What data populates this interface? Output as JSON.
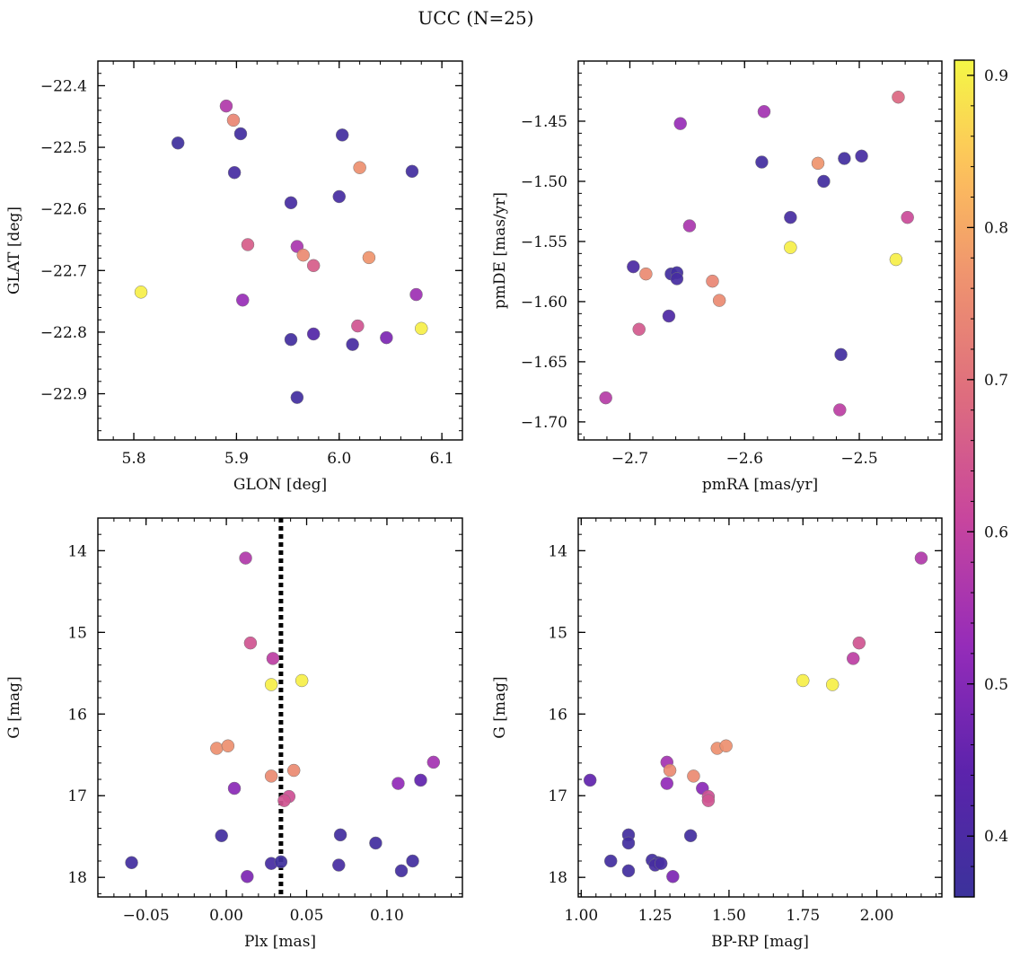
{
  "figure": {
    "title": "UCC (N=25)"
  },
  "colorbar": {
    "colormap": "plasma",
    "range": [
      0.36,
      0.91
    ],
    "ticks": [
      0.4,
      0.5,
      0.6,
      0.7,
      0.8,
      0.9
    ],
    "tick_labels": [
      "0.4",
      "0.5",
      "0.6",
      "0.7",
      "0.8",
      "0.9"
    ]
  },
  "chart_data": [
    {
      "type": "scatter",
      "panel": "top-left",
      "xlabel": "GLON [deg]",
      "ylabel": "GLAT [deg]",
      "xlim": [
        5.765,
        6.12
      ],
      "ylim": [
        -22.975,
        -22.36
      ],
      "xticks": [
        5.8,
        5.9,
        6.0,
        6.1
      ],
      "xtick_labels": [
        "5.8",
        "5.9",
        "6.0",
        "6.1"
      ],
      "yticks": [
        -22.4,
        -22.5,
        -22.6,
        -22.7,
        -22.8,
        -22.9
      ],
      "ytick_labels": [
        "−22.4",
        "−22.5",
        "−22.6",
        "−22.7",
        "−22.8",
        "−22.9"
      ],
      "points": [
        {
          "x": 5.843,
          "y": -22.493,
          "c": 0.37
        },
        {
          "x": 5.89,
          "y": -22.433,
          "c": 0.57
        },
        {
          "x": 5.897,
          "y": -22.456,
          "c": 0.74
        },
        {
          "x": 5.904,
          "y": -22.478,
          "c": 0.38
        },
        {
          "x": 5.898,
          "y": -22.541,
          "c": 0.39
        },
        {
          "x": 6.003,
          "y": -22.48,
          "c": 0.38
        },
        {
          "x": 6.02,
          "y": -22.533,
          "c": 0.76
        },
        {
          "x": 6.071,
          "y": -22.539,
          "c": 0.38
        },
        {
          "x": 5.953,
          "y": -22.59,
          "c": 0.39
        },
        {
          "x": 6.0,
          "y": -22.58,
          "c": 0.39
        },
        {
          "x": 5.911,
          "y": -22.658,
          "c": 0.66
        },
        {
          "x": 5.959,
          "y": -22.661,
          "c": 0.56
        },
        {
          "x": 5.965,
          "y": -22.675,
          "c": 0.75
        },
        {
          "x": 5.975,
          "y": -22.692,
          "c": 0.66
        },
        {
          "x": 6.029,
          "y": -22.679,
          "c": 0.77
        },
        {
          "x": 5.807,
          "y": -22.735,
          "c": 0.9
        },
        {
          "x": 5.906,
          "y": -22.748,
          "c": 0.53
        },
        {
          "x": 6.075,
          "y": -22.739,
          "c": 0.54
        },
        {
          "x": 6.018,
          "y": -22.79,
          "c": 0.64
        },
        {
          "x": 6.08,
          "y": -22.794,
          "c": 0.9
        },
        {
          "x": 5.975,
          "y": -22.803,
          "c": 0.42
        },
        {
          "x": 5.953,
          "y": -22.812,
          "c": 0.38
        },
        {
          "x": 6.013,
          "y": -22.82,
          "c": 0.39
        },
        {
          "x": 6.046,
          "y": -22.809,
          "c": 0.49
        },
        {
          "x": 5.959,
          "y": -22.906,
          "c": 0.38
        }
      ]
    },
    {
      "type": "scatter",
      "panel": "top-right",
      "xlabel": "pmRA [mas/yr]",
      "ylabel": "pmDE [mas/yr]",
      "xlim": [
        -2.745,
        -2.428
      ],
      "ylim": [
        -1.715,
        -1.4
      ],
      "xticks": [
        -2.7,
        -2.6,
        -2.5
      ],
      "xtick_labels": [
        "−2.7",
        "−2.6",
        "−2.5"
      ],
      "yticks": [
        -1.45,
        -1.5,
        -1.55,
        -1.6,
        -1.65,
        -1.7
      ],
      "ytick_labels": [
        "−1.45",
        "−1.50",
        "−1.55",
        "−1.60",
        "−1.65",
        "−1.70"
      ],
      "points": [
        {
          "x": -2.466,
          "y": -1.43,
          "c": 0.68
        },
        {
          "x": -2.656,
          "y": -1.452,
          "c": 0.53
        },
        {
          "x": -2.583,
          "y": -1.442,
          "c": 0.55
        },
        {
          "x": -2.585,
          "y": -1.484,
          "c": 0.38
        },
        {
          "x": -2.536,
          "y": -1.485,
          "c": 0.77
        },
        {
          "x": -2.513,
          "y": -1.481,
          "c": 0.38
        },
        {
          "x": -2.498,
          "y": -1.479,
          "c": 0.39
        },
        {
          "x": -2.531,
          "y": -1.5,
          "c": 0.38
        },
        {
          "x": -2.56,
          "y": -1.53,
          "c": 0.39
        },
        {
          "x": -2.458,
          "y": -1.53,
          "c": 0.62
        },
        {
          "x": -2.648,
          "y": -1.537,
          "c": 0.56
        },
        {
          "x": -2.56,
          "y": -1.555,
          "c": 0.9
        },
        {
          "x": -2.468,
          "y": -1.565,
          "c": 0.9
        },
        {
          "x": -2.697,
          "y": -1.571,
          "c": 0.4
        },
        {
          "x": -2.686,
          "y": -1.577,
          "c": 0.75
        },
        {
          "x": -2.664,
          "y": -1.577,
          "c": 0.38
        },
        {
          "x": -2.659,
          "y": -1.576,
          "c": 0.38
        },
        {
          "x": -2.659,
          "y": -1.581,
          "c": 0.39
        },
        {
          "x": -2.628,
          "y": -1.583,
          "c": 0.74
        },
        {
          "x": -2.622,
          "y": -1.599,
          "c": 0.75
        },
        {
          "x": -2.666,
          "y": -1.612,
          "c": 0.41
        },
        {
          "x": -2.692,
          "y": -1.623,
          "c": 0.65
        },
        {
          "x": -2.516,
          "y": -1.644,
          "c": 0.38
        },
        {
          "x": -2.721,
          "y": -1.68,
          "c": 0.58
        },
        {
          "x": -2.517,
          "y": -1.69,
          "c": 0.59
        }
      ]
    },
    {
      "type": "scatter",
      "panel": "bottom-left",
      "xlabel": "Plx [mas]",
      "ylabel": "G [mag]",
      "xlim": [
        -0.08,
        0.147
      ],
      "ylim": [
        18.24,
        13.6
      ],
      "y_inverted": true,
      "xticks": [
        -0.05,
        0.0,
        0.05,
        0.1
      ],
      "xtick_labels": [
        "−0.05",
        "0.00",
        "0.05",
        "0.10"
      ],
      "yticks": [
        14,
        15,
        16,
        17,
        18
      ],
      "ytick_labels": [
        "14",
        "15",
        "16",
        "17",
        "18"
      ],
      "vline": {
        "x": 0.034,
        "style": "dotted",
        "color": "#000000"
      },
      "points": [
        {
          "x": 0.012,
          "y": 14.09,
          "c": 0.57
        },
        {
          "x": 0.015,
          "y": 15.13,
          "c": 0.64
        },
        {
          "x": 0.029,
          "y": 15.32,
          "c": 0.59
        },
        {
          "x": 0.028,
          "y": 15.64,
          "c": 0.9
        },
        {
          "x": 0.047,
          "y": 15.59,
          "c": 0.9
        },
        {
          "x": -0.006,
          "y": 16.42,
          "c": 0.76
        },
        {
          "x": 0.001,
          "y": 16.39,
          "c": 0.76
        },
        {
          "x": 0.028,
          "y": 16.76,
          "c": 0.75
        },
        {
          "x": 0.042,
          "y": 16.69,
          "c": 0.75
        },
        {
          "x": 0.005,
          "y": 16.91,
          "c": 0.51
        },
        {
          "x": 0.039,
          "y": 17.01,
          "c": 0.63
        },
        {
          "x": 0.036,
          "y": 17.06,
          "c": 0.64
        },
        {
          "x": 0.107,
          "y": 16.85,
          "c": 0.52
        },
        {
          "x": 0.121,
          "y": 16.81,
          "c": 0.45
        },
        {
          "x": 0.129,
          "y": 16.59,
          "c": 0.55
        },
        {
          "x": -0.003,
          "y": 17.49,
          "c": 0.38
        },
        {
          "x": 0.071,
          "y": 17.48,
          "c": 0.38
        },
        {
          "x": 0.093,
          "y": 17.58,
          "c": 0.38
        },
        {
          "x": -0.059,
          "y": 17.82,
          "c": 0.38
        },
        {
          "x": 0.028,
          "y": 17.83,
          "c": 0.39
        },
        {
          "x": 0.034,
          "y": 17.81,
          "c": 0.37
        },
        {
          "x": 0.07,
          "y": 17.85,
          "c": 0.39
        },
        {
          "x": 0.116,
          "y": 17.8,
          "c": 0.38
        },
        {
          "x": 0.109,
          "y": 17.92,
          "c": 0.38
        },
        {
          "x": 0.013,
          "y": 17.99,
          "c": 0.49
        }
      ]
    },
    {
      "type": "scatter",
      "panel": "bottom-right",
      "xlabel": "BP-RP [mag]",
      "ylabel": "G [mag]",
      "xlim": [
        0.99,
        2.22
      ],
      "ylim": [
        18.24,
        13.6
      ],
      "y_inverted": true,
      "xticks": [
        1.0,
        1.25,
        1.5,
        1.75,
        2.0
      ],
      "xtick_labels": [
        "1.00",
        "1.25",
        "1.50",
        "1.75",
        "2.00"
      ],
      "yticks": [
        14,
        15,
        16,
        17,
        18
      ],
      "ytick_labels": [
        "14",
        "15",
        "16",
        "17",
        "18"
      ],
      "points": [
        {
          "x": 2.15,
          "y": 14.09,
          "c": 0.57
        },
        {
          "x": 1.94,
          "y": 15.13,
          "c": 0.64
        },
        {
          "x": 1.92,
          "y": 15.32,
          "c": 0.59
        },
        {
          "x": 1.75,
          "y": 15.59,
          "c": 0.9
        },
        {
          "x": 1.85,
          "y": 15.64,
          "c": 0.9
        },
        {
          "x": 1.46,
          "y": 16.42,
          "c": 0.76
        },
        {
          "x": 1.49,
          "y": 16.39,
          "c": 0.76
        },
        {
          "x": 1.29,
          "y": 16.59,
          "c": 0.55
        },
        {
          "x": 1.3,
          "y": 16.69,
          "c": 0.75
        },
        {
          "x": 1.38,
          "y": 16.76,
          "c": 0.75
        },
        {
          "x": 1.29,
          "y": 16.85,
          "c": 0.52
        },
        {
          "x": 1.41,
          "y": 16.91,
          "c": 0.51
        },
        {
          "x": 1.43,
          "y": 17.01,
          "c": 0.63
        },
        {
          "x": 1.43,
          "y": 17.06,
          "c": 0.64
        },
        {
          "x": 1.03,
          "y": 16.81,
          "c": 0.45
        },
        {
          "x": 1.16,
          "y": 17.48,
          "c": 0.38
        },
        {
          "x": 1.37,
          "y": 17.49,
          "c": 0.38
        },
        {
          "x": 1.16,
          "y": 17.58,
          "c": 0.38
        },
        {
          "x": 1.1,
          "y": 17.8,
          "c": 0.38
        },
        {
          "x": 1.24,
          "y": 17.79,
          "c": 0.38
        },
        {
          "x": 1.26,
          "y": 17.82,
          "c": 0.37
        },
        {
          "x": 1.25,
          "y": 17.85,
          "c": 0.39
        },
        {
          "x": 1.27,
          "y": 17.83,
          "c": 0.39
        },
        {
          "x": 1.16,
          "y": 17.92,
          "c": 0.38
        },
        {
          "x": 1.31,
          "y": 17.99,
          "c": 0.49
        }
      ]
    }
  ]
}
